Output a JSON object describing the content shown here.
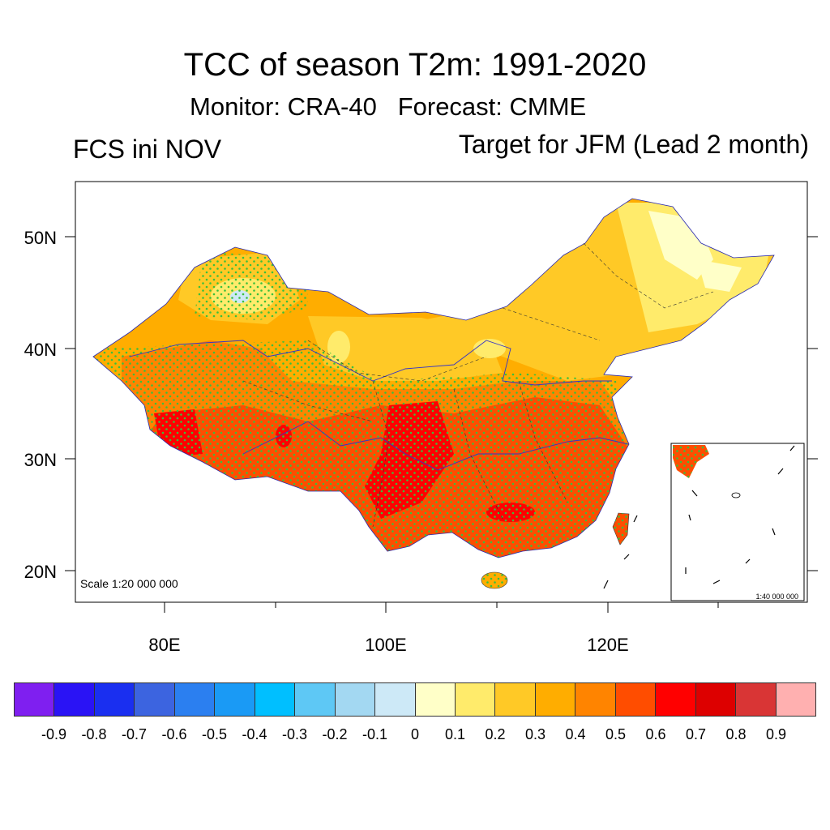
{
  "title": "TCC of season T2m: 1991-2020",
  "subtitle": "Monitor: CRA-40   Forecast: CMME",
  "left_string": "FCS ini NOV",
  "right_string": "Target for JFM (Lead 2 month)",
  "map": {
    "lat_labels": [
      "50N",
      "40N",
      "30N",
      "20N"
    ],
    "lon_labels": [
      "80E",
      "100E",
      "120E"
    ],
    "scale_text": "Scale 1:20 000 000",
    "inset_scale_text": "1:40 000 000"
  },
  "colorbar": {
    "colors": [
      "#7f1ff0",
      "#2a13f5",
      "#1a2ff0",
      "#3c64e0",
      "#2b7ff0",
      "#1a9af5",
      "#00bfff",
      "#5ec8f5",
      "#a3d8f2",
      "#cde9f7",
      "#ffffc8",
      "#ffeb6b",
      "#ffc926",
      "#ffad00",
      "#ff8400",
      "#ff4d00",
      "#ff0000",
      "#dd0000",
      "#d93535",
      "#ffb0b0"
    ],
    "labels": [
      "-0.9",
      "-0.8",
      "-0.7",
      "-0.6",
      "-0.5",
      "-0.4",
      "-0.3",
      "-0.2",
      "-0.1",
      "0",
      "0.1",
      "0.2",
      "0.3",
      "0.4",
      "0.5",
      "0.6",
      "0.7",
      "0.8",
      "0.9"
    ]
  }
}
